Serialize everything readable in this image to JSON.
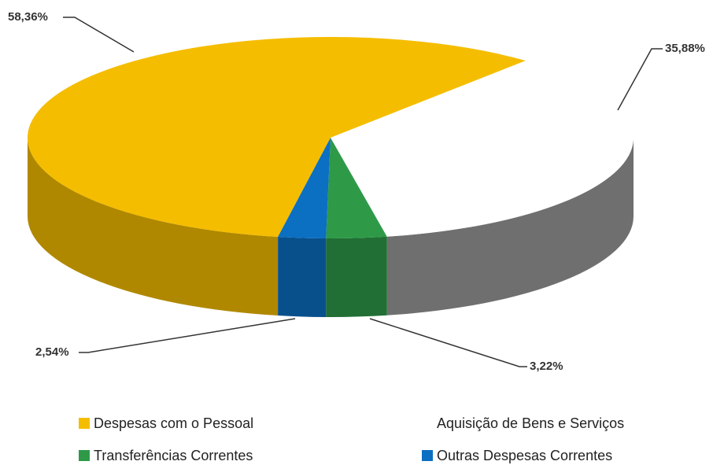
{
  "chart_data": {
    "type": "pie",
    "categories": [
      "Despesas com o Pessoal",
      "Aquisição de Bens e Serviços",
      "Transferências Correntes",
      "Outras Despesas Correntes"
    ],
    "values": [
      58.36,
      35.88,
      3.22,
      2.54
    ],
    "value_labels": [
      "58,36%",
      "35,88%",
      "3,22%",
      "2,54%"
    ],
    "colors": [
      "#f5bd00",
      "#ffffff",
      "#2e9a48",
      "#0b6fc2"
    ]
  }
}
